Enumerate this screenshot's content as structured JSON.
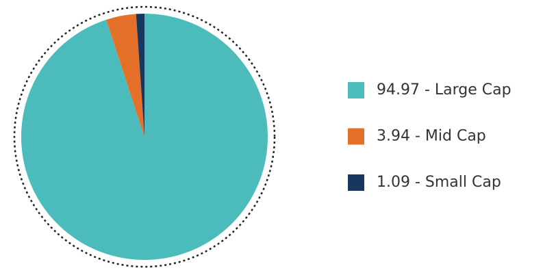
{
  "chart_data": {
    "type": "pie",
    "values": [
      94.97,
      3.94,
      1.09
    ],
    "value_labels": [
      "94.97 - Large Cap",
      "3.94 - Mid Cap",
      "1.09 - Small Cap"
    ],
    "colors": [
      "#4bbcbb",
      "#e5702a",
      "#17375e"
    ],
    "legend": "right"
  }
}
